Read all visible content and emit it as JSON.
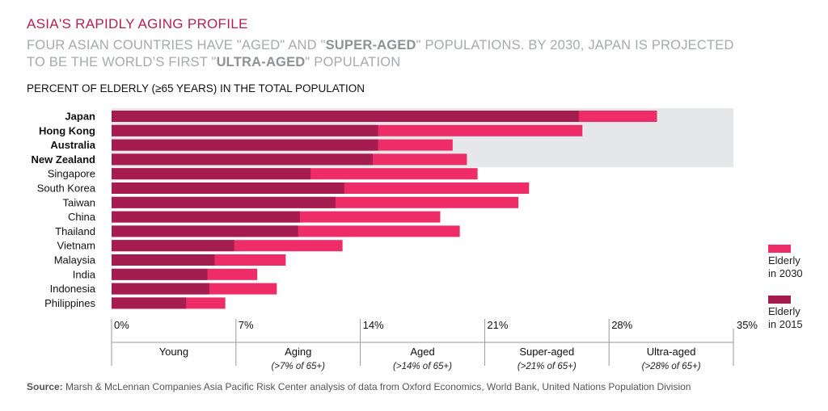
{
  "title": "ASIA'S RAPIDLY AGING PROFILE",
  "subtitle": {
    "part1": "FOUR ASIAN COUNTRIES HAVE \"AGED\" AND \"",
    "bold1": "SUPER-AGED",
    "part2": "\" POPULATIONS. BY 2030, JAPAN IS PROJECTED TO BE THE WORLD’S FIRST \"",
    "bold2": "ULTRA-AGED",
    "part3": "\" POPULATION"
  },
  "chart_title": "PERCENT OF ELDERLY (≥65 YEARS) IN THE TOTAL POPULATION",
  "source": {
    "label": "Source:",
    "text": " Marsh & McLennan Companies Asia Pacific Risk Center analysis of data from Oxford Economics, World Bank, United Nations Population Division"
  },
  "colors": {
    "elderly_2015": "#a51c4e",
    "elderly_2030": "#ee2d68",
    "highlight_band": "#e6e7e8",
    "axis": "#999999"
  },
  "chart_data": {
    "type": "bar",
    "orientation": "horizontal",
    "categories": [
      "Japan",
      "Hong Kong",
      "Australia",
      "New Zealand",
      "Singapore",
      "South Korea",
      "Taiwan",
      "China",
      "Thailand",
      "Vietnam",
      "Malaysia",
      "India",
      "Indonesia",
      "Philippines"
    ],
    "bold_categories": [
      "Japan",
      "Hong Kong",
      "Australia",
      "New Zealand"
    ],
    "series": [
      {
        "name": "Elderly in 2015",
        "values": [
          26.3,
          15.0,
          15.0,
          14.7,
          11.2,
          13.1,
          12.6,
          10.6,
          10.5,
          6.9,
          5.8,
          5.4,
          5.5,
          4.2
        ]
      },
      {
        "name": "Elderly in 2030",
        "values": [
          30.7,
          26.5,
          19.2,
          20.0,
          20.6,
          23.5,
          22.9,
          18.5,
          19.6,
          13.0,
          9.8,
          8.2,
          9.3,
          6.4
        ]
      }
    ],
    "xlim": [
      0,
      35
    ],
    "x_ticks": [
      "0%",
      "7%",
      "14%",
      "21%",
      "28%",
      "35%"
    ],
    "bands": [
      {
        "name": "Young",
        "sub": ""
      },
      {
        "name": "Aging",
        "sub": "(>7% of 65+)"
      },
      {
        "name": "Aged",
        "sub": "(>14% of 65+)"
      },
      {
        "name": "Super-aged",
        "sub": "(>21% of 65+)"
      },
      {
        "name": "Ultra-aged",
        "sub": "(>28% of 65+)"
      }
    ],
    "legend": [
      {
        "line1": "Elderly",
        "line2": "in 2030"
      },
      {
        "line1": "Elderly",
        "line2": "in 2015"
      }
    ],
    "legend_position": "right"
  }
}
